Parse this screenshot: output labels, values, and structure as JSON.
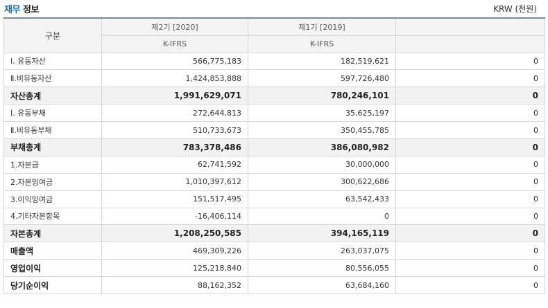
{
  "header": {
    "title_accent": "재무",
    "title_rest": " 정보",
    "unit": "KRW (천원)"
  },
  "table": {
    "gubun": "구분",
    "periods": [
      "제2기 [2020]",
      "제1기 [2019]",
      ""
    ],
    "standards": [
      "K-IFRS",
      "K-IFRS",
      ""
    ],
    "rows": [
      {
        "label": "Ⅰ. 유동자산",
        "v1": "566,775,183",
        "v2": "182,519,621",
        "v3": "0",
        "type": "data"
      },
      {
        "label": "Ⅱ.비유동자산",
        "v1": "1,424,853,888",
        "v2": "597,726,480",
        "v3": "0",
        "type": "data"
      },
      {
        "label": "자산총계",
        "v1": "1,991,629,071",
        "v2": "780,246,101",
        "v3": "0",
        "type": "sub"
      },
      {
        "label": "Ⅰ. 유동부채",
        "v1": "272,644,813",
        "v2": "35,625,197",
        "v3": "0",
        "type": "data"
      },
      {
        "label": "Ⅱ.비유동부채",
        "v1": "510,733,673",
        "v2": "350,455,785",
        "v3": "0",
        "type": "data"
      },
      {
        "label": "부채총계",
        "v1": "783,378,486",
        "v2": "386,080,982",
        "v3": "0",
        "type": "sub"
      },
      {
        "label": "1.자본금",
        "v1": "62,741,592",
        "v2": "30,000,000",
        "v3": "0",
        "type": "data"
      },
      {
        "label": "2.자본잉여금",
        "v1": "1,010,397,612",
        "v2": "300,622,686",
        "v3": "0",
        "type": "data"
      },
      {
        "label": "3.이익잉여금",
        "v1": "151,517,495",
        "v2": "63,542,433",
        "v3": "0",
        "type": "data"
      },
      {
        "label": "4.기타자본항목",
        "v1": "-16,406,114",
        "v2": "0",
        "v3": "0",
        "type": "data"
      },
      {
        "label": "자본총계",
        "v1": "1,208,250,585",
        "v2": "394,165,119",
        "v3": "0",
        "type": "sub"
      },
      {
        "label": "매출액",
        "v1": "469,309,226",
        "v2": "263,037,075",
        "v3": "0",
        "type": "boldlbl"
      },
      {
        "label": "영업이익",
        "v1": "125,218,840",
        "v2": "80,556,055",
        "v3": "0",
        "type": "boldlbl"
      },
      {
        "label": "당기순이익",
        "v1": "88,162,352",
        "v2": "63,684,160",
        "v3": "0",
        "type": "boldlbl"
      }
    ]
  }
}
